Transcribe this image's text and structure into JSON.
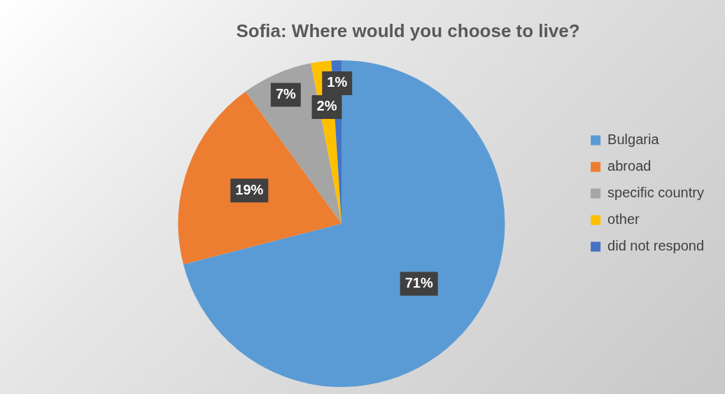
{
  "chart_data": {
    "type": "pie",
    "title": "Sofia: Where would you choose to live?",
    "categories": [
      "Bulgaria",
      "abroad",
      "specific country",
      "other",
      "did not respond"
    ],
    "values": [
      71,
      19,
      7,
      2,
      1
    ],
    "colors": [
      "#5b9bd5",
      "#ed7d31",
      "#a5a5a5",
      "#ffc000",
      "#4472c4"
    ],
    "value_labels": [
      "71%",
      "19%",
      "7%",
      "2%",
      "1%"
    ],
    "legend": "right"
  }
}
